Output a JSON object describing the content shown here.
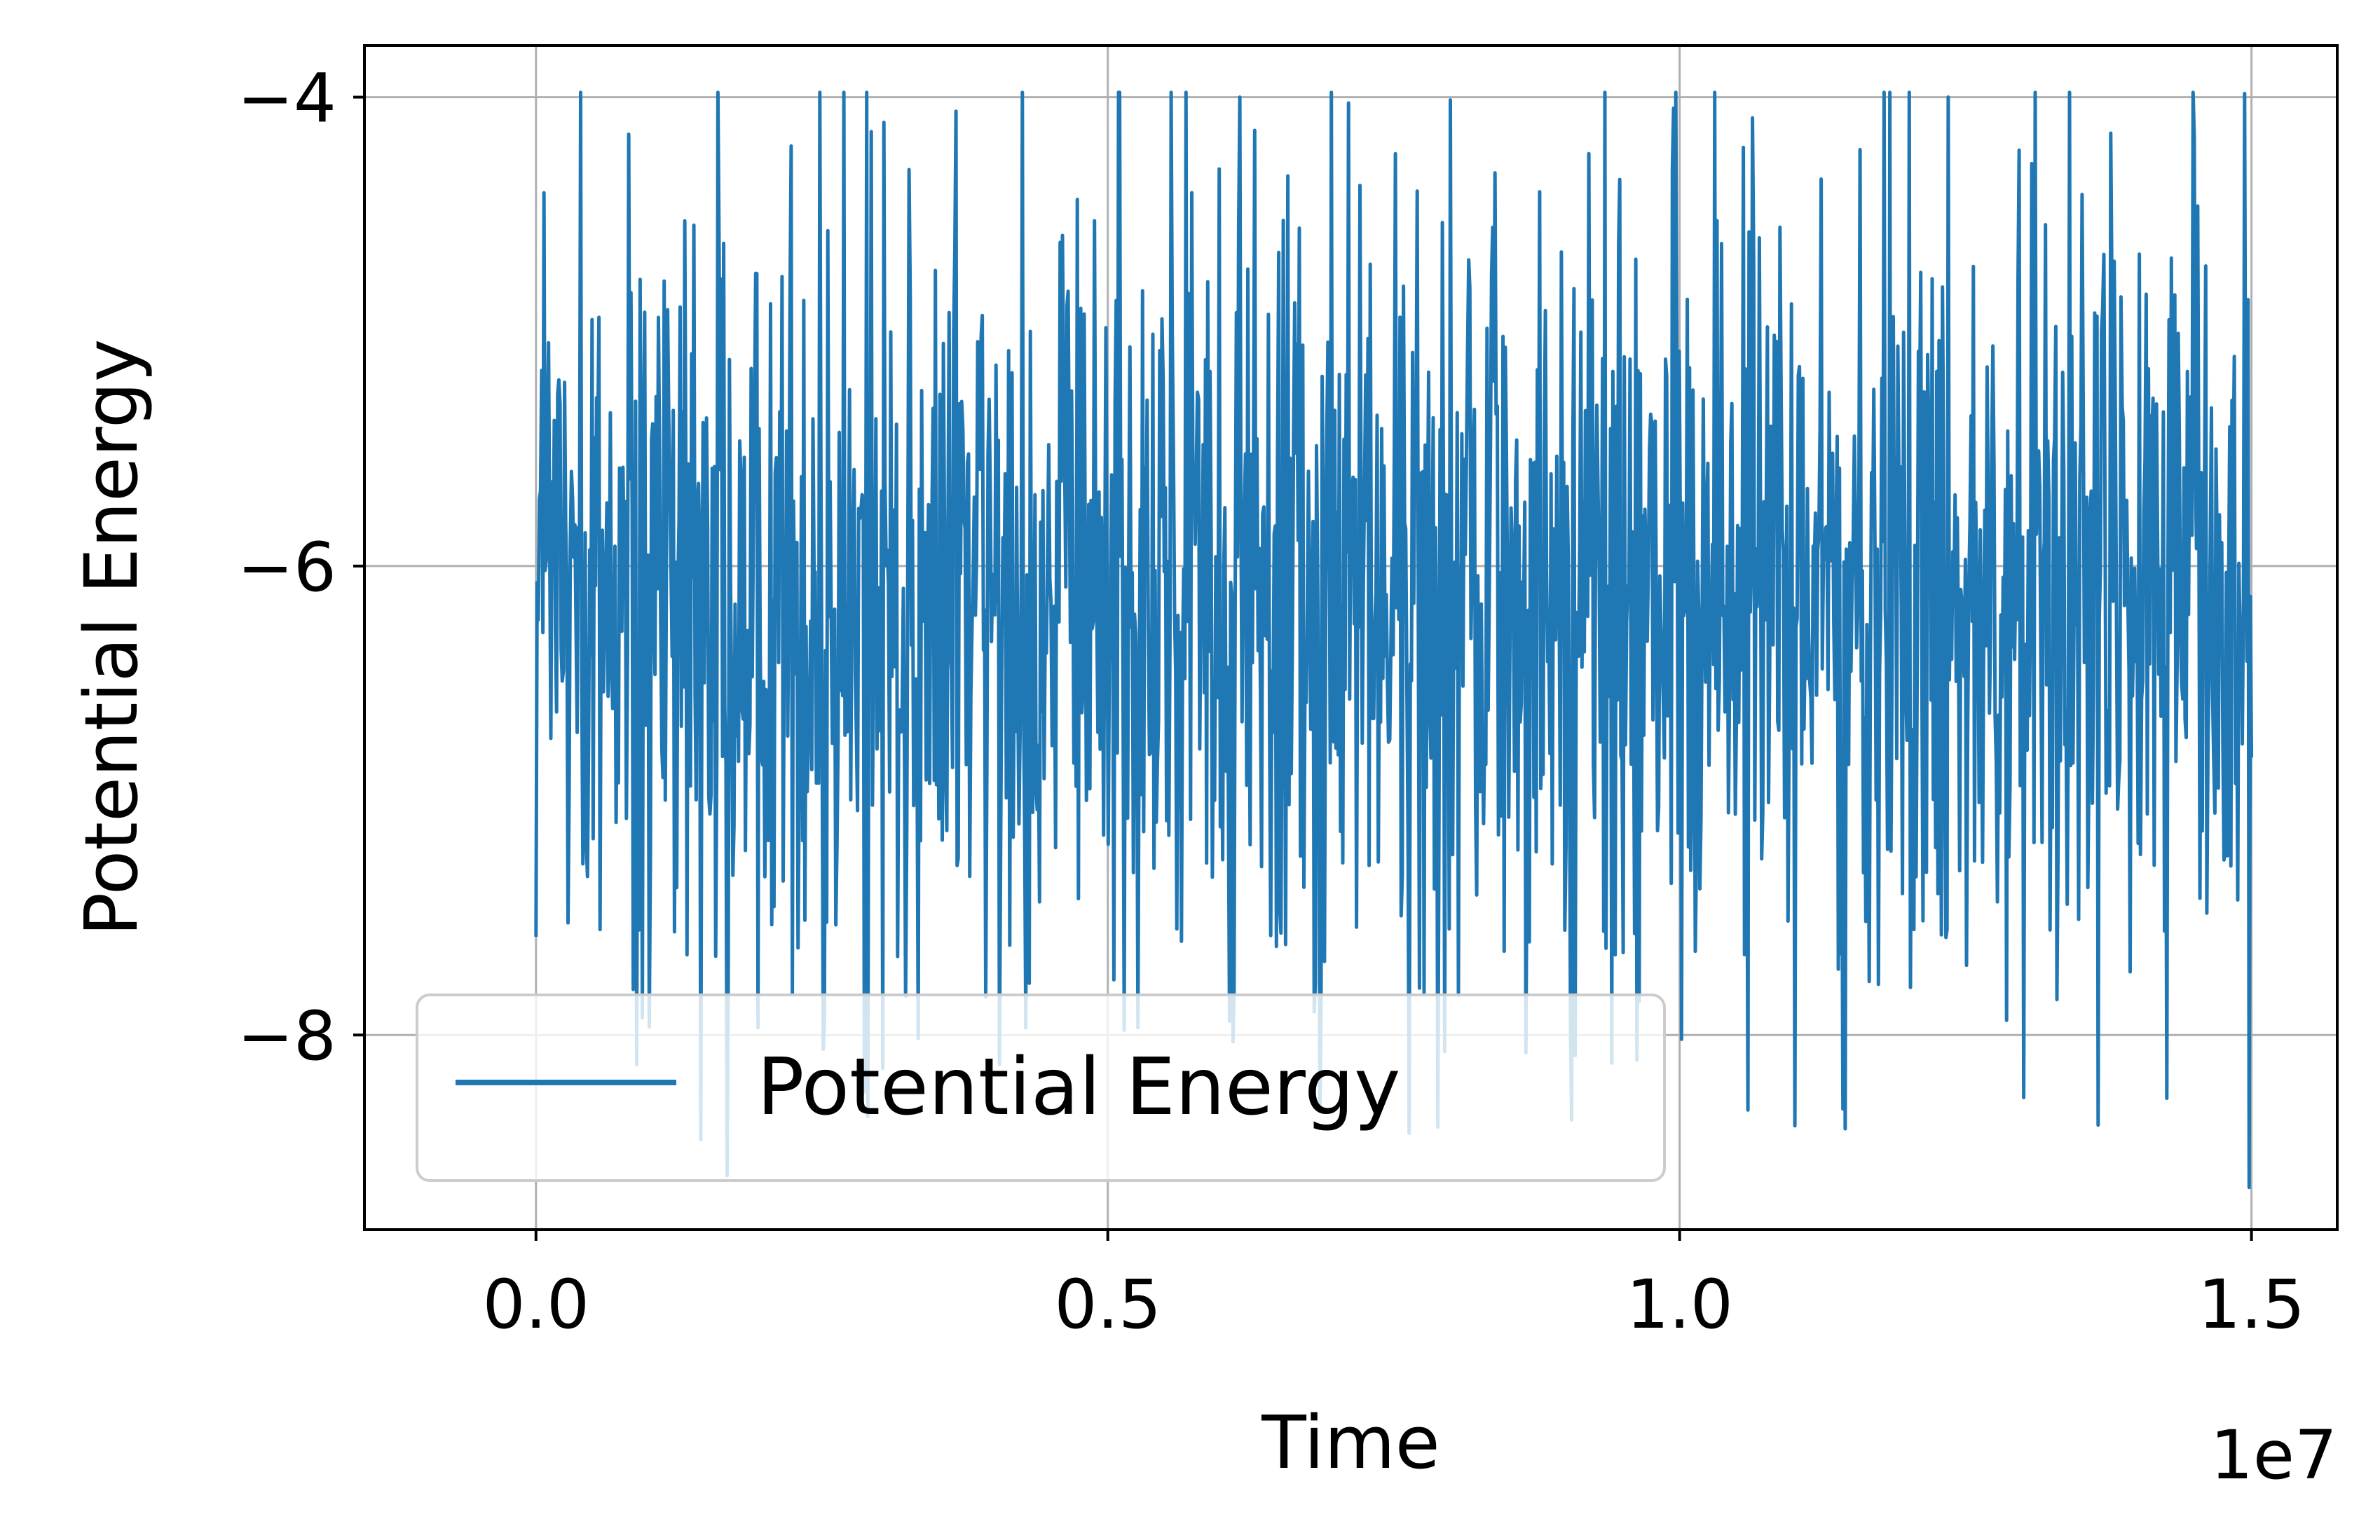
{
  "chart_data": {
    "type": "line",
    "xlabel": "Time",
    "ylabel": "Potential Energy",
    "x_offset_label": "1e7",
    "xlim": [
      -1.5,
      15.75
    ],
    "ylim": [
      -8.83,
      -3.78
    ],
    "x_ticks": [
      0.0,
      5.0,
      10.0,
      15.0
    ],
    "x_tick_labels": [
      "0.0",
      "0.5",
      "1.0",
      "1.5"
    ],
    "y_ticks": [
      -4,
      -6,
      -8
    ],
    "y_tick_labels": [
      "−4",
      "−6",
      "−8"
    ],
    "grid": true,
    "legend_placement": "lower-left",
    "series": [
      {
        "name": "Potential Energy",
        "color": "#1f77b4",
        "x_range": [
          0.0,
          15.0
        ],
        "sample_count": 1500,
        "mean": -6.1,
        "typical_min": -7.4,
        "typical_max": -4.6,
        "max": -3.98,
        "min": -8.65,
        "noted_extremes": [
          {
            "x": 5.1,
            "y": -3.98
          },
          {
            "x": 6.15,
            "y": -4.0
          },
          {
            "x": 12.35,
            "y": -4.0
          },
          {
            "x": 1.67,
            "y": -8.6
          },
          {
            "x": 11.45,
            "y": -8.4
          },
          {
            "x": 14.98,
            "y": -8.65
          },
          {
            "x": 10.6,
            "y": -8.32
          }
        ]
      }
    ]
  }
}
